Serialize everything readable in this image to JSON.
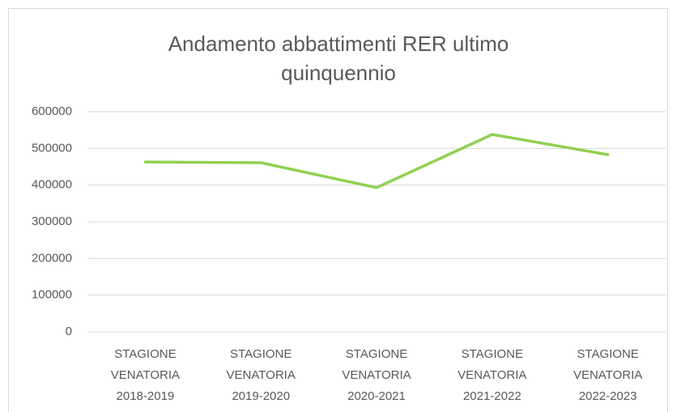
{
  "chart_data": {
    "type": "line",
    "title": "Andamento abbattimenti RER ultimo quinquennio",
    "categories": [
      "STAGIONE VENATORIA 2018-2019",
      "STAGIONE VENATORIA 2019-2020",
      "STAGIONE VENATORIA 2020-2021",
      "STAGIONE VENATORIA 2021-2022",
      "STAGIONE VENATORIA 2022-2023"
    ],
    "values": [
      463000,
      461000,
      393000,
      538000,
      483000
    ],
    "color": "#92d050",
    "ylim": [
      0,
      600000
    ],
    "yticks": [
      0,
      100000,
      200000,
      300000,
      400000,
      500000,
      600000
    ],
    "grid": true
  }
}
